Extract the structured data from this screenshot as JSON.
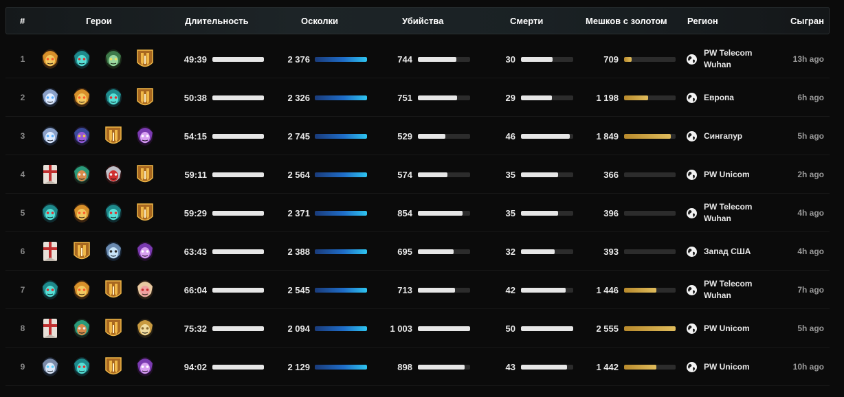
{
  "header": {
    "rank": "#",
    "heroes": "Герои",
    "duration": "Длительность",
    "shards": "Осколки",
    "kills": "Убийства",
    "deaths": "Смерти",
    "gold_bags": "Мешков с золотом",
    "region": "Регион",
    "played": "Сыгран"
  },
  "colors": {
    "shards_bar": "#2ec4f0",
    "gold_bar": "#e0bc5c",
    "white_bar": "#e6e6e6"
  },
  "rows": [
    {
      "rank": "1",
      "heroes": [
        "tiny-hero-icon",
        "weaver-hero-icon",
        "techies-hero-icon",
        "random-hero-icon"
      ],
      "duration": "49:39",
      "duration_pct": 100,
      "shards": "2 376",
      "shards_pct": 100,
      "kills": "744",
      "kills_pct": 74,
      "deaths": "30",
      "deaths_pct": 61,
      "gold": "709",
      "gold_pct": 14,
      "region": "PW Telecom Wuhan",
      "played": "13h ago"
    },
    {
      "rank": "2",
      "heroes": [
        "drow-hero-icon",
        "tiny-hero-icon",
        "weaver-hero-icon",
        "random-hero-icon"
      ],
      "duration": "50:38",
      "duration_pct": 100,
      "shards": "2 326",
      "shards_pct": 100,
      "kills": "751",
      "kills_pct": 75,
      "deaths": "29",
      "deaths_pct": 59,
      "gold": "1 198",
      "gold_pct": 47,
      "region": "Европа",
      "played": "6h ago"
    },
    {
      "rank": "3",
      "heroes": [
        "drow-hero-icon",
        "riki-hero-icon",
        "random-hero-icon",
        "faceless-hero-icon"
      ],
      "duration": "54:15",
      "duration_pct": 100,
      "shards": "2 745",
      "shards_pct": 100,
      "kills": "529",
      "kills_pct": 53,
      "deaths": "46",
      "deaths_pct": 94,
      "gold": "1 849",
      "gold_pct": 91,
      "region": "Сингапур",
      "played": "5h ago"
    },
    {
      "rank": "4",
      "heroes": [
        "centaur-hero-icon",
        "tinker-hero-icon",
        "bloodseeker-hero-icon",
        "random-hero-icon"
      ],
      "duration": "59:11",
      "duration_pct": 100,
      "shards": "2 564",
      "shards_pct": 100,
      "kills": "574",
      "kills_pct": 57,
      "deaths": "35",
      "deaths_pct": 71,
      "gold": "366",
      "gold_pct": 0,
      "region": "PW Unicom",
      "played": "2h ago"
    },
    {
      "rank": "5",
      "heroes": [
        "weaver-hero-icon",
        "tiny-hero-icon",
        "weaver-hero-icon",
        "random-hero-icon"
      ],
      "duration": "59:29",
      "duration_pct": 100,
      "shards": "2 371",
      "shards_pct": 100,
      "kills": "854",
      "kills_pct": 85,
      "deaths": "35",
      "deaths_pct": 71,
      "gold": "396",
      "gold_pct": 0,
      "region": "PW Telecom Wuhan",
      "played": "4h ago"
    },
    {
      "rank": "6",
      "heroes": [
        "centaur-hero-icon",
        "random-hero-icon",
        "tidehunter-hero-icon",
        "faceless-hero-icon"
      ],
      "duration": "63:43",
      "duration_pct": 100,
      "shards": "2 388",
      "shards_pct": 100,
      "kills": "695",
      "kills_pct": 69,
      "deaths": "32",
      "deaths_pct": 65,
      "gold": "393",
      "gold_pct": 0,
      "region": "Запад США",
      "played": "4h ago"
    },
    {
      "rank": "7",
      "heroes": [
        "weaver-hero-icon",
        "tiny-hero-icon",
        "random-hero-icon",
        "dazzle-hero-icon"
      ],
      "duration": "66:04",
      "duration_pct": 100,
      "shards": "2 545",
      "shards_pct": 100,
      "kills": "713",
      "kills_pct": 71,
      "deaths": "42",
      "deaths_pct": 86,
      "gold": "1 446",
      "gold_pct": 63,
      "region": "PW Telecom Wuhan",
      "played": "7h ago"
    },
    {
      "rank": "8",
      "heroes": [
        "centaur-hero-icon",
        "tinker-hero-icon",
        "random-hero-icon",
        "medusa-hero-icon"
      ],
      "duration": "75:32",
      "duration_pct": 100,
      "shards": "2 094",
      "shards_pct": 100,
      "kills": "1 003",
      "kills_pct": 100,
      "deaths": "50",
      "deaths_pct": 100,
      "gold": "2 555",
      "gold_pct": 100,
      "region": "PW Unicom",
      "played": "5h ago"
    },
    {
      "rank": "9",
      "heroes": [
        "lich-hero-icon",
        "weaver-hero-icon",
        "random-hero-icon",
        "faceless-hero-icon"
      ],
      "duration": "94:02",
      "duration_pct": 100,
      "shards": "2 129",
      "shards_pct": 100,
      "kills": "898",
      "kills_pct": 89,
      "deaths": "43",
      "deaths_pct": 88,
      "gold": "1 442",
      "gold_pct": 63,
      "region": "PW Unicom",
      "played": "10h ago"
    }
  ]
}
